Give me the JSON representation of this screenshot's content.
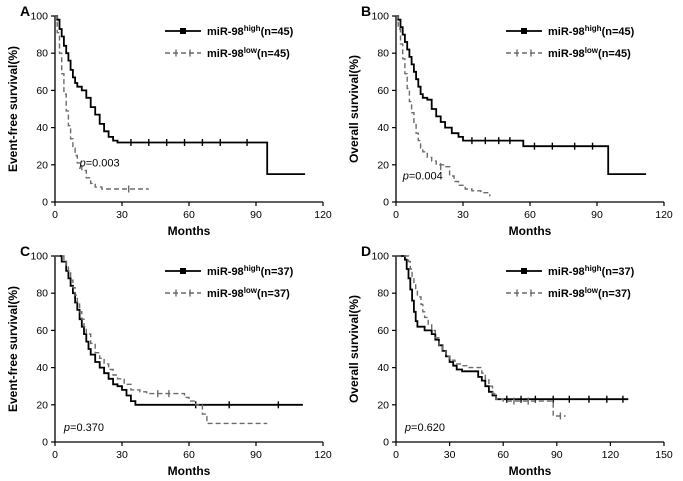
{
  "figure": {
    "panel_labels": [
      "A",
      "B",
      "C",
      "D"
    ]
  },
  "chart_data": [
    {
      "type": "line",
      "panel": "A",
      "xlabel": "Months",
      "ylabel": "Event-free survival(%)",
      "xlim": [
        0,
        120
      ],
      "xticks": [
        0,
        30,
        60,
        90,
        120
      ],
      "ylim": [
        0,
        100
      ],
      "yticks": [
        0,
        20,
        40,
        60,
        80,
        100
      ],
      "legend_position": "top-right",
      "p_label": {
        "text": "p=0.003",
        "x": 11,
        "y": 19
      },
      "series": [
        {
          "name": "miR-98",
          "sup": "high",
          "suffix": "(n=45)",
          "style": "solid",
          "color": "#000000",
          "points": [
            [
              0,
              100
            ],
            [
              1,
              98
            ],
            [
              2,
              93
            ],
            [
              3,
              89
            ],
            [
              4,
              84
            ],
            [
              5,
              80
            ],
            [
              6,
              76
            ],
            [
              7,
              71
            ],
            [
              8,
              67
            ],
            [
              9,
              64
            ],
            [
              10,
              62
            ],
            [
              12,
              60
            ],
            [
              14,
              56
            ],
            [
              16,
              51
            ],
            [
              18,
              47
            ],
            [
              20,
              42
            ],
            [
              22,
              38
            ],
            [
              24,
              35
            ],
            [
              26,
              33
            ],
            [
              28,
              32
            ],
            [
              95,
              32
            ],
            [
              95,
              15
            ],
            [
              112,
              15
            ]
          ],
          "censors": [
            [
              34,
              32
            ],
            [
              42,
              32
            ],
            [
              50,
              32
            ],
            [
              58,
              32
            ],
            [
              66,
              32
            ],
            [
              74,
              32
            ],
            [
              86,
              32
            ]
          ]
        },
        {
          "name": "miR-98",
          "sup": "low",
          "suffix": "(n=45)",
          "style": "dashed",
          "color": "#6b6b6b",
          "points": [
            [
              0,
              100
            ],
            [
              1,
              91
            ],
            [
              2,
              80
            ],
            [
              3,
              69
            ],
            [
              4,
              58
            ],
            [
              5,
              49
            ],
            [
              6,
              41
            ],
            [
              7,
              34
            ],
            [
              8,
              29
            ],
            [
              9,
              25
            ],
            [
              10,
              21
            ],
            [
              12,
              17
            ],
            [
              14,
              13
            ],
            [
              16,
              10
            ],
            [
              18,
              8
            ],
            [
              21,
              7
            ],
            [
              42,
              7
            ]
          ],
          "censors": [
            [
              33,
              7
            ]
          ]
        }
      ]
    },
    {
      "type": "line",
      "panel": "B",
      "xlabel": "Months",
      "ylabel": "Overall survival(%)",
      "xlim": [
        0,
        120
      ],
      "xticks": [
        0,
        30,
        60,
        90,
        120
      ],
      "ylim": [
        0,
        100
      ],
      "yticks": [
        0,
        20,
        40,
        60,
        80,
        100
      ],
      "legend_position": "top-right",
      "p_label": {
        "text": "p=0.004",
        "x": 3,
        "y": 12
      },
      "series": [
        {
          "name": "miR-98",
          "sup": "high",
          "suffix": "(n=45)",
          "style": "solid",
          "color": "#000000",
          "points": [
            [
              0,
              100
            ],
            [
              1,
              98
            ],
            [
              2,
              94
            ],
            [
              3,
              90
            ],
            [
              4,
              86
            ],
            [
              5,
              82
            ],
            [
              6,
              78
            ],
            [
              7,
              74
            ],
            [
              8,
              70
            ],
            [
              9,
              66
            ],
            [
              10,
              62
            ],
            [
              11,
              58
            ],
            [
              12,
              56
            ],
            [
              14,
              55
            ],
            [
              16,
              50
            ],
            [
              18,
              46
            ],
            [
              20,
              43
            ],
            [
              22,
              40
            ],
            [
              25,
              37
            ],
            [
              28,
              35
            ],
            [
              30,
              33
            ],
            [
              55,
              33
            ],
            [
              57,
              30
            ],
            [
              95,
              30
            ],
            [
              95,
              15
            ],
            [
              112,
              15
            ]
          ],
          "censors": [
            [
              34,
              33
            ],
            [
              40,
              33
            ],
            [
              46,
              33
            ],
            [
              51,
              33
            ],
            [
              62,
              30
            ],
            [
              70,
              30
            ],
            [
              80,
              30
            ],
            [
              88,
              30
            ]
          ]
        },
        {
          "name": "miR-98",
          "sup": "low",
          "suffix": "(n=45)",
          "style": "dashed",
          "color": "#6b6b6b",
          "points": [
            [
              0,
              100
            ],
            [
              1,
              93
            ],
            [
              2,
              85
            ],
            [
              3,
              77
            ],
            [
              4,
              69
            ],
            [
              5,
              61
            ],
            [
              6,
              54
            ],
            [
              7,
              48
            ],
            [
              8,
              42
            ],
            [
              9,
              37
            ],
            [
              10,
              33
            ],
            [
              11,
              29
            ],
            [
              12,
              27
            ],
            [
              14,
              24
            ],
            [
              16,
              22
            ],
            [
              18,
              20
            ],
            [
              22,
              19
            ],
            [
              24,
              14
            ],
            [
              26,
              11
            ],
            [
              28,
              9
            ],
            [
              31,
              7
            ],
            [
              34,
              6
            ],
            [
              38,
              5
            ],
            [
              42,
              3
            ]
          ],
          "censors": [
            [
              20,
              19
            ]
          ]
        }
      ]
    },
    {
      "type": "line",
      "panel": "C",
      "xlabel": "Months",
      "ylabel": "Event-free survival(%)",
      "xlim": [
        0,
        120
      ],
      "xticks": [
        0,
        30,
        60,
        90,
        120
      ],
      "ylim": [
        0,
        100
      ],
      "yticks": [
        0,
        20,
        40,
        60,
        80,
        100
      ],
      "legend_position": "top-right",
      "p_label": {
        "text": "p=0.370",
        "x": 4,
        "y": 6
      },
      "series": [
        {
          "name": "miR-98",
          "sup": "high",
          "suffix": "(n=37)",
          "style": "solid",
          "color": "#000000",
          "points": [
            [
              0,
              100
            ],
            [
              3,
              97
            ],
            [
              5,
              92
            ],
            [
              6,
              88
            ],
            [
              7,
              84
            ],
            [
              8,
              80
            ],
            [
              9,
              75
            ],
            [
              10,
              71
            ],
            [
              11,
              66
            ],
            [
              12,
              62
            ],
            [
              13,
              58
            ],
            [
              14,
              54
            ],
            [
              15,
              50
            ],
            [
              16,
              47
            ],
            [
              18,
              43
            ],
            [
              20,
              40
            ],
            [
              22,
              37
            ],
            [
              24,
              34
            ],
            [
              26,
              31
            ],
            [
              28,
              30
            ],
            [
              30,
              28
            ],
            [
              32,
              25
            ],
            [
              34,
              22
            ],
            [
              36,
              20
            ],
            [
              111,
              20
            ]
          ],
          "censors": [
            [
              63,
              20
            ],
            [
              78,
              20
            ],
            [
              100,
              20
            ]
          ]
        },
        {
          "name": "miR-98",
          "sup": "low",
          "suffix": "(n=37)",
          "style": "dashed",
          "color": "#6b6b6b",
          "points": [
            [
              0,
              100
            ],
            [
              4,
              97
            ],
            [
              5,
              94
            ],
            [
              6,
              91
            ],
            [
              7,
              87
            ],
            [
              8,
              83
            ],
            [
              9,
              79
            ],
            [
              10,
              75
            ],
            [
              11,
              70
            ],
            [
              12,
              66
            ],
            [
              13,
              62
            ],
            [
              14,
              58
            ],
            [
              16,
              53
            ],
            [
              18,
              48
            ],
            [
              20,
              45
            ],
            [
              22,
              42
            ],
            [
              24,
              39
            ],
            [
              26,
              36
            ],
            [
              28,
              34
            ],
            [
              31,
              31
            ],
            [
              34,
              28
            ],
            [
              38,
              27
            ],
            [
              41,
              26
            ],
            [
              55,
              26
            ],
            [
              58,
              24
            ],
            [
              60,
              22
            ],
            [
              63,
              20
            ],
            [
              66,
              15
            ],
            [
              68,
              10
            ],
            [
              95,
              10
            ]
          ],
          "censors": [
            [
              46,
              26
            ],
            [
              51,
              26
            ]
          ]
        }
      ]
    },
    {
      "type": "line",
      "panel": "D",
      "xlabel": "Months",
      "ylabel": "Overall survival(%)",
      "xlim": [
        0,
        150
      ],
      "xticks": [
        0,
        30,
        60,
        90,
        120,
        150
      ],
      "ylim": [
        0,
        100
      ],
      "yticks": [
        0,
        20,
        40,
        60,
        80,
        100
      ],
      "legend_position": "top-right",
      "p_label": {
        "text": "p=0.620",
        "x": 5,
        "y": 6
      },
      "series": [
        {
          "name": "miR-98",
          "sup": "high",
          "suffix": "(n=37)",
          "style": "solid",
          "color": "#000000",
          "points": [
            [
              0,
              100
            ],
            [
              5,
              98
            ],
            [
              6,
              93
            ],
            [
              7,
              88
            ],
            [
              8,
              82
            ],
            [
              9,
              76
            ],
            [
              10,
              70
            ],
            [
              11,
              65
            ],
            [
              12,
              62
            ],
            [
              16,
              60
            ],
            [
              20,
              58
            ],
            [
              22,
              55
            ],
            [
              24,
              52
            ],
            [
              26,
              49
            ],
            [
              28,
              46
            ],
            [
              30,
              43
            ],
            [
              32,
              41
            ],
            [
              34,
              39
            ],
            [
              37,
              38
            ],
            [
              44,
              38
            ],
            [
              46,
              35
            ],
            [
              48,
              33
            ],
            [
              50,
              30
            ],
            [
              52,
              27
            ],
            [
              54,
              25
            ],
            [
              56,
              23
            ],
            [
              130,
              23
            ]
          ],
          "censors": [
            [
              62,
              23
            ],
            [
              70,
              23
            ],
            [
              78,
              23
            ],
            [
              88,
              23
            ],
            [
              97,
              23
            ],
            [
              108,
              23
            ],
            [
              118,
              23
            ],
            [
              127,
              23
            ]
          ]
        },
        {
          "name": "miR-98",
          "sup": "low",
          "suffix": "(n=37)",
          "style": "dashed",
          "color": "#6b6b6b",
          "points": [
            [
              0,
              100
            ],
            [
              7,
              97
            ],
            [
              8,
              93
            ],
            [
              9,
              89
            ],
            [
              10,
              85
            ],
            [
              11,
              81
            ],
            [
              12,
              78
            ],
            [
              14,
              74
            ],
            [
              15,
              70
            ],
            [
              16,
              67
            ],
            [
              18,
              63
            ],
            [
              20,
              60
            ],
            [
              22,
              56
            ],
            [
              24,
              52
            ],
            [
              26,
              49
            ],
            [
              28,
              46
            ],
            [
              30,
              44
            ],
            [
              33,
              42
            ],
            [
              36,
              41
            ],
            [
              40,
              40
            ],
            [
              46,
              40
            ],
            [
              48,
              37
            ],
            [
              50,
              34
            ],
            [
              52,
              30
            ],
            [
              54,
              26
            ],
            [
              56,
              23
            ],
            [
              60,
              22
            ],
            [
              87,
              22
            ],
            [
              88,
              14
            ],
            [
              95,
              14
            ]
          ],
          "censors": [
            [
              66,
              22
            ],
            [
              74,
              22
            ],
            [
              92,
              14
            ]
          ]
        }
      ]
    }
  ]
}
